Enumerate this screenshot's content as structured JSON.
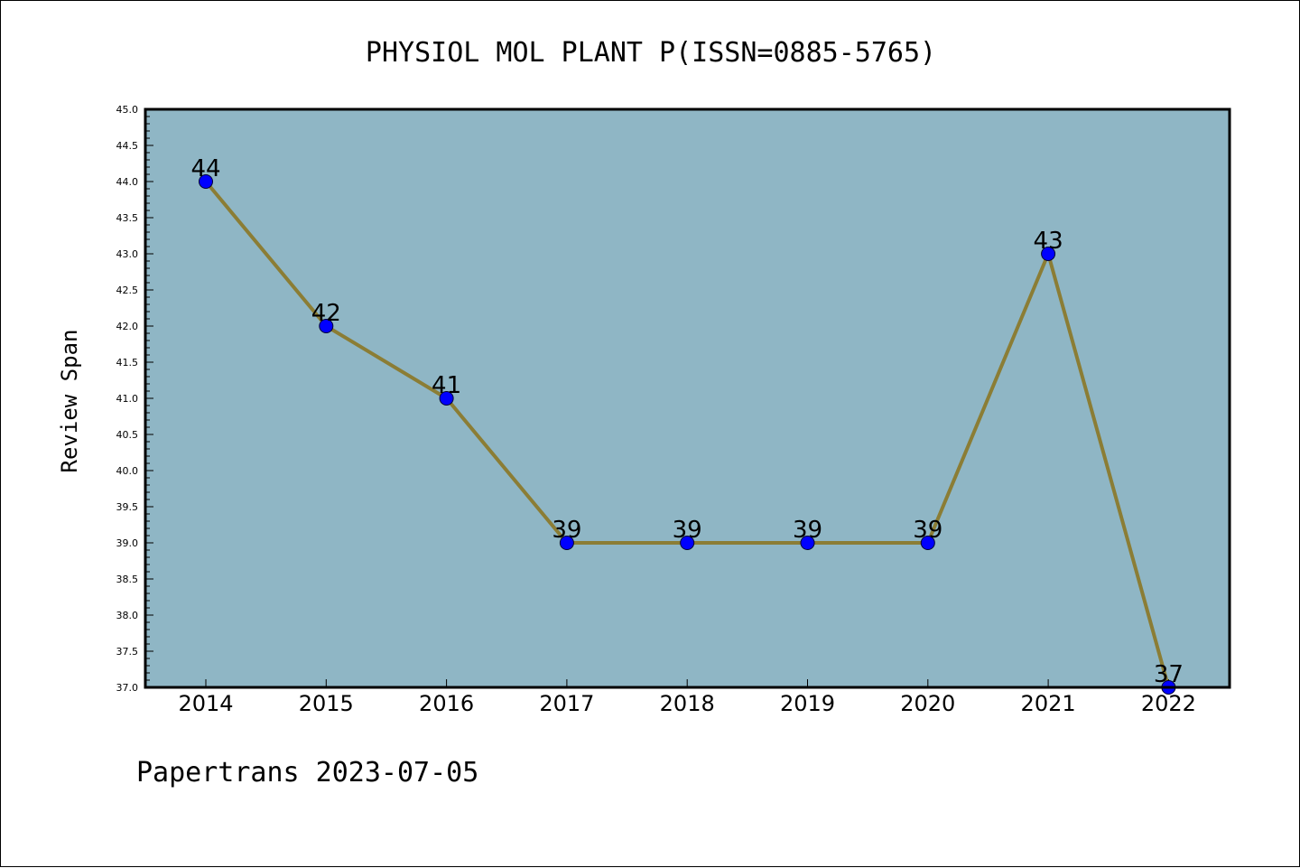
{
  "chart_data": {
    "type": "line",
    "title": "PHYSIOL MOL PLANT P(ISSN=0885-5765)",
    "xlabel": "",
    "ylabel": "Review Span",
    "categories": [
      "2014",
      "2015",
      "2016",
      "2017",
      "2018",
      "2019",
      "2020",
      "2021",
      "2022"
    ],
    "series": [
      {
        "values": [
          44,
          42,
          41,
          39,
          39,
          39,
          39,
          43,
          37
        ]
      }
    ],
    "data_labels": [
      "44",
      "42",
      "41",
      "39",
      "39",
      "39",
      "39",
      "43",
      "37"
    ],
    "ylim": [
      37.0,
      45.0
    ],
    "yticks": [
      "37.0",
      "37.5",
      "38.0",
      "38.5",
      "39.0",
      "39.5",
      "40.0",
      "40.5",
      "41.0",
      "41.5",
      "42.0",
      "42.5",
      "43.0",
      "43.5",
      "44.0",
      "44.5",
      "45.0"
    ],
    "yminor_step": 0.1,
    "grid": false,
    "legend": "none",
    "colors": {
      "plot_background": "#8fb6c5",
      "line": "#8b7d35",
      "marker": "#0000ff",
      "axes": "#000000"
    }
  },
  "footer": "Papertrans 2023-07-05"
}
